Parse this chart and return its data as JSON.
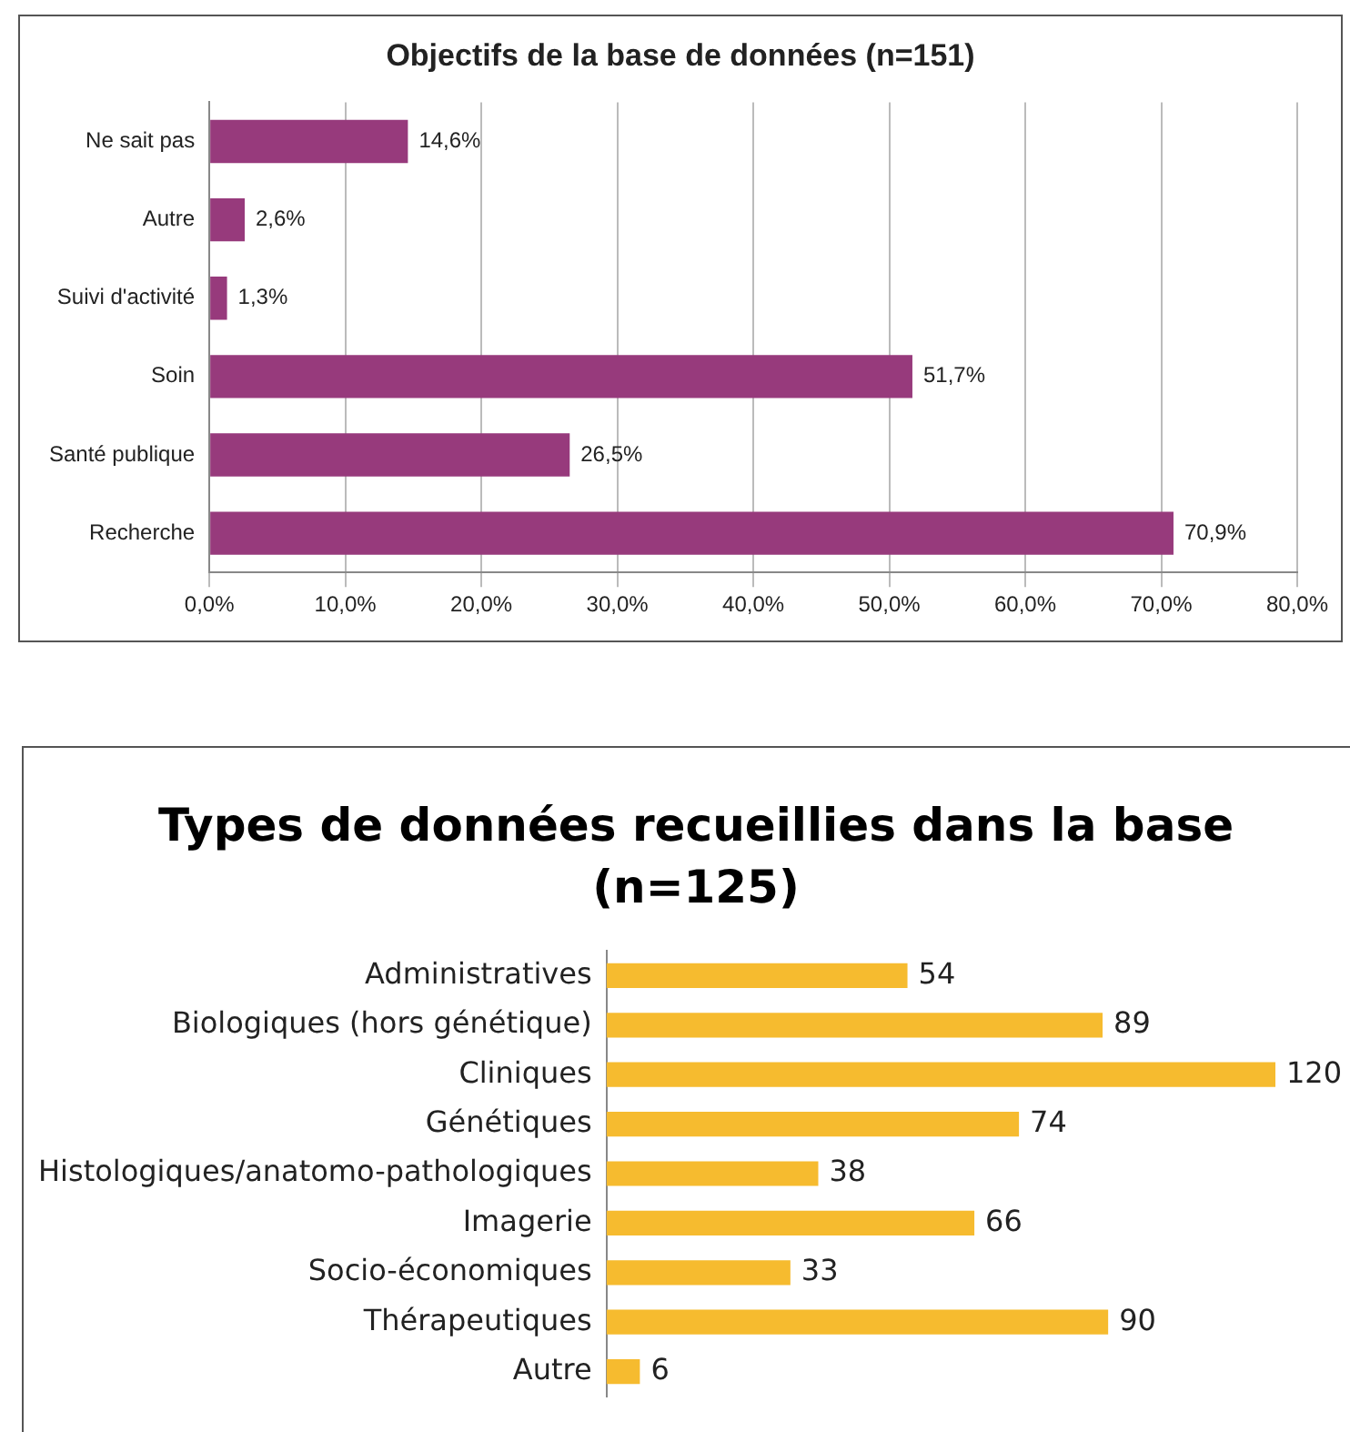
{
  "chart_data": [
    {
      "type": "bar",
      "orientation": "horizontal",
      "title": "Objectifs de la base de données (n=151)",
      "categories": [
        "Ne sait pas",
        "Autre",
        "Suivi d'activité",
        "Soin",
        "Santé publique",
        "Recherche"
      ],
      "values": [
        14.6,
        2.6,
        1.3,
        51.7,
        26.5,
        70.9
      ],
      "color": "#973a7c",
      "value_labels": [
        "14,6%",
        "2,6%",
        "1,3%",
        "51,7%",
        "26,5%",
        "70,9%"
      ],
      "xlim": [
        0,
        80
      ],
      "xticks": [
        {
          "value": 0,
          "label": "0,0%"
        },
        {
          "value": 10,
          "label": "10,0%"
        },
        {
          "value": 20,
          "label": "20,0%"
        },
        {
          "value": 30,
          "label": "30,0%"
        },
        {
          "value": 40,
          "label": "40,0%"
        },
        {
          "value": 50,
          "label": "50,0%"
        },
        {
          "value": 60,
          "label": "60,0%"
        },
        {
          "value": 70,
          "label": "70,0%"
        },
        {
          "value": 80,
          "label": "80,0%"
        }
      ],
      "grid": "x",
      "legend": false
    },
    {
      "type": "bar",
      "orientation": "horizontal",
      "title": "Types de données recueillies dans la base (n=125)",
      "categories": [
        "Administratives",
        "Biologiques (hors génétique)",
        "Cliniques",
        "Génétiques",
        "Histologiques/anatomo-pathologiques",
        "Imagerie",
        "Socio-économiques",
        "Thérapeutiques",
        "Autre"
      ],
      "values": [
        54,
        89,
        120,
        74,
        38,
        66,
        33,
        90,
        6
      ],
      "color": "#f6bb2f",
      "data_labels": true,
      "tick_labels": "y",
      "grid": false,
      "legend": false
    }
  ]
}
